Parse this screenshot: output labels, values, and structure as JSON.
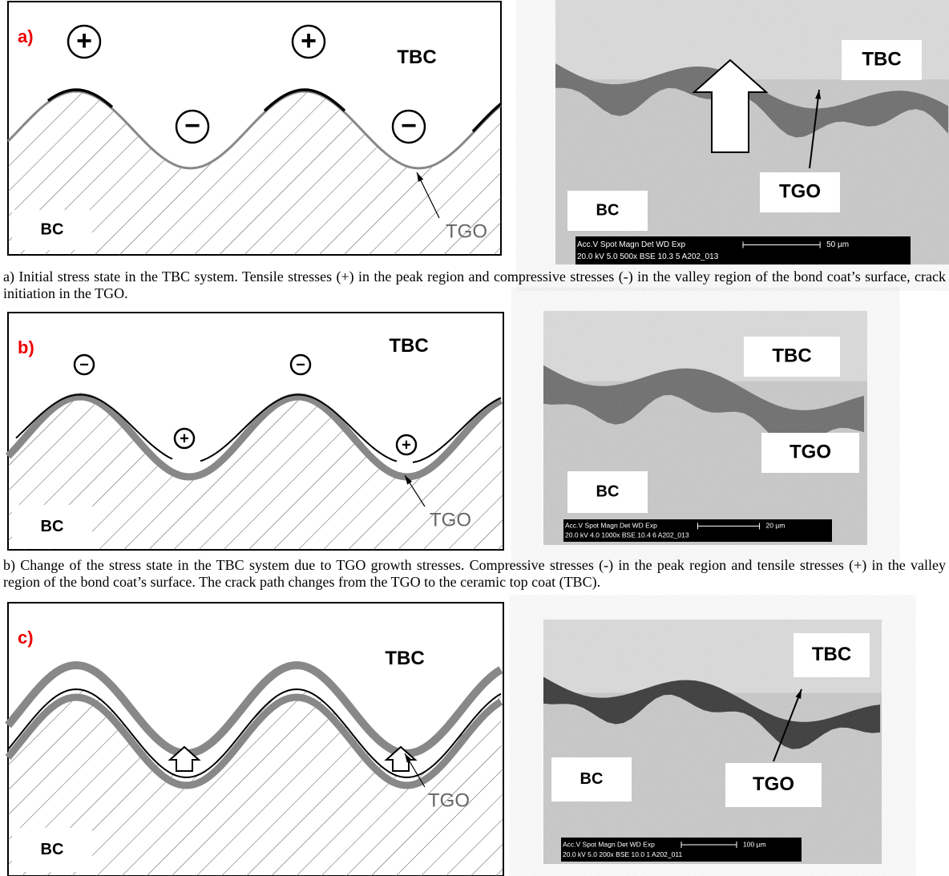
{
  "panels": [
    {
      "label": "a)",
      "diagram": {
        "tbc": "TBC",
        "bc": "BC",
        "tgo": "TGO",
        "signs": [
          "+",
          "+",
          "−",
          "−"
        ]
      },
      "micrograph": {
        "tbc": "TBC",
        "tgo": "TGO",
        "bc": "BC",
        "databar_header": "Acc.V  Spot Magn    Det  WD  Exp",
        "databar_values": "20.0 kV 5.0   500x    BSE 10.3  5      A202_013",
        "scale": "50 µm"
      },
      "caption": "a) Initial stress state in the TBC system. Tensile stresses (+) in the peak region and compressive stresses (-) in the valley region of the bond coat’s surface, crack initiation in the TGO."
    },
    {
      "label": "b)",
      "diagram": {
        "tbc": "TBC",
        "bc": "BC",
        "tgo": "TGO",
        "signs": [
          "−",
          "−",
          "+",
          "+"
        ]
      },
      "micrograph": {
        "tbc": "TBC",
        "tgo": "TGO",
        "bc": "BC",
        "databar_header": "Acc.V  Spot Magn    Det  WD  Exp",
        "databar_values": "20.0 kV 4.0   1000x   BSE 10.4  6      A202_013",
        "scale": "20 µm"
      },
      "caption": "b) Change of the stress state in the TBC system due to TGO growth stresses. Compressive stresses (-) in the peak region and tensile stresses (+) in the valley region of the bond coat’s surface. The crack path changes from the TGO to the ceramic top coat (TBC)."
    },
    {
      "label": "c)",
      "diagram": {
        "tbc": "TBC",
        "bc": "BC",
        "tgo": "TGO"
      },
      "micrograph": {
        "tbc": "TBC",
        "tgo": "TGO",
        "bc": "BC",
        "databar_header": "Acc.V  Spot Magn    Det  WD  Exp",
        "databar_values": "20.0 kV 5.0   200x    BSE 10.0  1      A202_011",
        "scale": "100 µm"
      }
    }
  ]
}
